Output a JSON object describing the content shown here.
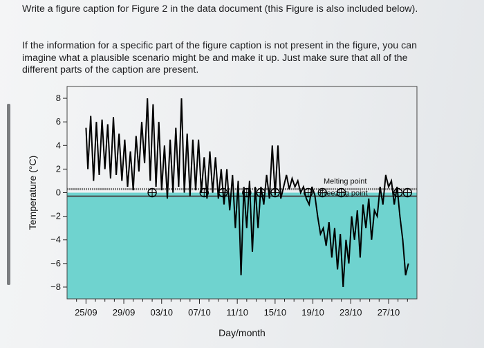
{
  "prompt": {
    "paragraph1": "Write a figure caption for Figure 2 in the data document (this Figure is also included below).",
    "paragraph2": "If the information for a specific part of the figure caption is not present in the figure, you can imagine what a plausible scenario might be and make it up. Just make sure that all of the different parts of the caption are present."
  },
  "chart_data": {
    "type": "line",
    "title": "",
    "xlabel": "Day/month",
    "ylabel": "Temperature (°C)",
    "x_ticks": [
      "25/09",
      "29/09",
      "03/10",
      "07/10",
      "11/10",
      "15/10",
      "19/10",
      "23/10",
      "27/10"
    ],
    "y_ticks": [
      8,
      6,
      4,
      2,
      0,
      -2,
      -4,
      -6,
      -8
    ],
    "ylim": [
      -9,
      9
    ],
    "xlim_days": [
      -2,
      35
    ],
    "annotations": {
      "melting": "Melting point",
      "freezing": "Freezing point"
    },
    "colors": {
      "below_zero": "#6fd3cf",
      "above_zero": "#ffffff",
      "line": "#000000",
      "melting_line": "#7f7f7f",
      "freezing_line": "#4a4a4a"
    },
    "series": [
      {
        "x": [
          0.0,
          0.2,
          0.5,
          0.8,
          1.1,
          1.4,
          1.7,
          2.0,
          2.3,
          2.6,
          2.9,
          3.2,
          3.5,
          3.8,
          4.1,
          4.4,
          4.7,
          5.0,
          5.3,
          5.6,
          5.9,
          6.2,
          6.5,
          6.8,
          7.1,
          7.4,
          7.7,
          8.0,
          8.3,
          8.6,
          8.9,
          9.2,
          9.5,
          9.8,
          10.1,
          10.4,
          10.7,
          11.0,
          11.3,
          11.6,
          11.9,
          12.2,
          12.5,
          12.8,
          13.1,
          13.4,
          13.7,
          14.0,
          14.3,
          14.6,
          14.9,
          15.2,
          15.5,
          15.8,
          16.1,
          16.4,
          16.7,
          17.0,
          17.3,
          17.6,
          17.9,
          18.2,
          18.5,
          18.8,
          19.1,
          19.4,
          19.7,
          20.0,
          20.3,
          20.6,
          20.9,
          21.2,
          21.5,
          21.8,
          22.1,
          22.4,
          22.7,
          23.0,
          23.3,
          23.6,
          23.9,
          24.2,
          24.5,
          24.8,
          25.1,
          25.4,
          25.7,
          26.0,
          26.3,
          26.6,
          26.9,
          27.2,
          27.5,
          27.8,
          28.1,
          28.4,
          28.7,
          29.0,
          29.3,
          29.6,
          29.9,
          30.2,
          30.5,
          30.8,
          31.1,
          31.4,
          31.7,
          32.0,
          32.3,
          32.6,
          32.9,
          33.2,
          33.5,
          33.8,
          34.1
        ],
        "y": [
          5.5,
          2.0,
          6.5,
          1.0,
          6.0,
          1.5,
          6.2,
          2.0,
          5.8,
          1.2,
          6.4,
          1.5,
          5.0,
          1.0,
          4.5,
          0.5,
          3.5,
          0.2,
          4.8,
          1.8,
          6.0,
          2.5,
          8.0,
          1.0,
          7.5,
          0.5,
          6.0,
          0.2,
          4.0,
          -0.5,
          4.5,
          0.0,
          5.5,
          0.5,
          8.0,
          0.0,
          5.0,
          -0.3,
          4.5,
          0.2,
          4.5,
          0.0,
          3.0,
          -0.5,
          3.5,
          0.0,
          3.0,
          -0.5,
          2.0,
          -1.0,
          2.0,
          -1.5,
          1.5,
          -3.0,
          1.0,
          -7.0,
          0.5,
          -3.0,
          1.0,
          -5.0,
          0.5,
          -3.0,
          0.5,
          -1.0,
          1.5,
          -0.5,
          4.0,
          -0.2,
          4.0,
          -0.5,
          0.5,
          1.5,
          0.3,
          1.2,
          0.5,
          1.0,
          0.0,
          0.5,
          -0.5,
          -1.0,
          0.5,
          -0.2,
          -2.0,
          -3.5,
          -3.0,
          -4.5,
          -2.5,
          -5.5,
          -3.0,
          -6.5,
          -3.5,
          -8.0,
          -4.0,
          -6.0,
          -2.0,
          -4.0,
          -1.5,
          -5.5,
          -1.0,
          -3.0,
          -0.5,
          -4.0,
          -1.5,
          -2.0,
          0.5,
          -1.0,
          1.5,
          0.5,
          1.0,
          -1.0,
          0.5,
          -2.0,
          -4.0,
          -7.0,
          -6.0
        ]
      }
    ],
    "melting_point": 0.3,
    "freezing_point": -0.3,
    "circle_markers_days": [
      7.0,
      12.5,
      14.5,
      17.0,
      18.5,
      20.0,
      23.5,
      25.0,
      27.0,
      33.0,
      34.0
    ]
  }
}
